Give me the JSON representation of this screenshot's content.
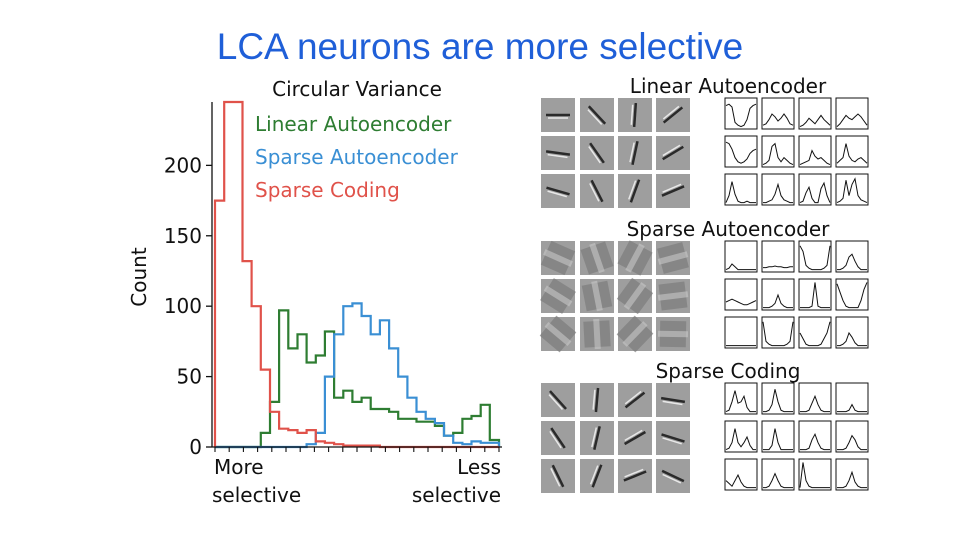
{
  "slide": {
    "title": "LCA neurons are more selective"
  },
  "chart_data": {
    "type": "histogram-step",
    "title": "Circular Variance",
    "ylabel": "Count",
    "xlabel_left": [
      "More",
      "selective"
    ],
    "xlabel_right": [
      "Less",
      "selective"
    ],
    "xlim": [
      0,
      1
    ],
    "ylim": [
      0,
      245
    ],
    "yticks": [
      0,
      50,
      100,
      150,
      200
    ],
    "legend_position": "top-right",
    "bins": 31,
    "series": [
      {
        "name": "Linear Autoencoder",
        "color": "#2e7d32",
        "values": [
          0,
          0,
          0,
          0,
          0,
          10,
          32,
          97,
          70,
          80,
          60,
          65,
          82,
          35,
          40,
          32,
          35,
          27,
          27,
          25,
          20,
          20,
          18,
          18,
          15,
          8,
          10,
          20,
          22,
          30,
          5
        ]
      },
      {
        "name": "Sparse Autoencoder",
        "color": "#3a8fd4",
        "values": [
          0,
          0,
          0,
          0,
          0,
          0,
          0,
          0,
          0,
          0,
          2,
          10,
          50,
          80,
          100,
          102,
          93,
          80,
          90,
          70,
          50,
          35,
          25,
          20,
          17,
          8,
          3,
          2,
          4,
          3,
          3
        ]
      },
      {
        "name": "Sparse Coding",
        "color": "#e0524a",
        "values": [
          175,
          245,
          245,
          132,
          100,
          55,
          25,
          13,
          12,
          10,
          12,
          4,
          3,
          2,
          1,
          1,
          1,
          1,
          0,
          0,
          0,
          0,
          0,
          0,
          0,
          0,
          0,
          0,
          0,
          0,
          0
        ]
      }
    ]
  },
  "panels": [
    {
      "title": "Linear Autoencoder",
      "curves": [
        [
          0.8,
          0.85,
          0.75,
          0.2,
          0.1,
          0.05,
          0.1,
          0.3,
          0.7,
          0.8,
          0.85
        ],
        [
          0.1,
          0.15,
          0.3,
          0.5,
          0.4,
          0.25,
          0.35,
          0.5,
          0.35,
          0.15,
          0.1
        ],
        [
          0.05,
          0.1,
          0.2,
          0.35,
          0.25,
          0.15,
          0.3,
          0.45,
          0.3,
          0.2,
          0.1
        ],
        [
          0.05,
          0.15,
          0.3,
          0.45,
          0.35,
          0.3,
          0.4,
          0.5,
          0.4,
          0.25,
          0.1
        ],
        [
          0.85,
          0.8,
          0.6,
          0.3,
          0.15,
          0.1,
          0.15,
          0.25,
          0.45,
          0.55,
          0.6
        ],
        [
          0.05,
          0.1,
          0.2,
          0.7,
          0.8,
          0.3,
          0.15,
          0.3,
          0.2,
          0.1,
          0.05
        ],
        [
          0.05,
          0.1,
          0.15,
          0.2,
          0.55,
          0.35,
          0.25,
          0.3,
          0.2,
          0.1,
          0.05
        ],
        [
          0.1,
          0.2,
          0.3,
          0.8,
          0.35,
          0.2,
          0.15,
          0.25,
          0.3,
          0.2,
          0.1
        ],
        [
          0.05,
          0.3,
          0.8,
          0.35,
          0.1,
          0.05,
          0.05,
          0.1,
          0.05,
          0.05,
          0.05
        ],
        [
          0.05,
          0.05,
          0.1,
          0.15,
          0.35,
          0.7,
          0.3,
          0.15,
          0.1,
          0.05,
          0.05
        ],
        [
          0.05,
          0.1,
          0.4,
          0.6,
          0.2,
          0.05,
          0.05,
          0.55,
          0.75,
          0.3,
          0.05
        ],
        [
          0.05,
          0.1,
          0.2,
          0.85,
          0.3,
          0.7,
          0.9,
          0.3,
          0.15,
          0.1,
          0.05
        ]
      ]
    },
    {
      "title": "Sparse Autoencoder",
      "curves": [
        [
          0.05,
          0.1,
          0.25,
          0.15,
          0.05,
          0.05,
          0.05,
          0.05,
          0.05,
          0.05,
          0.05
        ],
        [
          0.12,
          0.12,
          0.15,
          0.15,
          0.18,
          0.15,
          0.15,
          0.12,
          0.12,
          0.15,
          0.15
        ],
        [
          0.9,
          0.7,
          0.2,
          0.1,
          0.05,
          0.05,
          0.05,
          0.05,
          0.1,
          0.2,
          0.9
        ],
        [
          0.05,
          0.05,
          0.1,
          0.2,
          0.5,
          0.6,
          0.35,
          0.15,
          0.05,
          0.05,
          0.05
        ],
        [
          0.25,
          0.3,
          0.35,
          0.3,
          0.25,
          0.2,
          0.15,
          0.15,
          0.2,
          0.25,
          0.3
        ],
        [
          0.05,
          0.05,
          0.05,
          0.1,
          0.2,
          0.5,
          0.2,
          0.1,
          0.05,
          0.05,
          0.05
        ],
        [
          0.05,
          0.05,
          0.05,
          0.05,
          0.1,
          0.95,
          0.1,
          0.05,
          0.05,
          0.05,
          0.05
        ],
        [
          0.9,
          0.6,
          0.3,
          0.1,
          0.05,
          0.05,
          0.05,
          0.05,
          0.3,
          0.7,
          0.95
        ],
        [
          0.05,
          0.05,
          0.05,
          0.05,
          0.05,
          0.05,
          0.05,
          0.05,
          0.05,
          0.05,
          0.05
        ],
        [
          0.9,
          0.2,
          0.1,
          0.05,
          0.05,
          0.05,
          0.05,
          0.05,
          0.1,
          0.2,
          0.9
        ],
        [
          0.5,
          0.3,
          0.1,
          0.05,
          0.05,
          0.05,
          0.05,
          0.1,
          0.3,
          0.5,
          0.9
        ],
        [
          0.05,
          0.05,
          0.1,
          0.2,
          0.5,
          0.35,
          0.15,
          0.05,
          0.05,
          0.05,
          0.05
        ]
      ]
    },
    {
      "title": "Sparse Coding",
      "curves": [
        [
          0.05,
          0.1,
          0.4,
          0.8,
          0.35,
          0.4,
          0.6,
          0.2,
          0.05,
          0.05,
          0.05
        ],
        [
          0.05,
          0.05,
          0.1,
          0.3,
          0.85,
          0.4,
          0.1,
          0.05,
          0.05,
          0.05,
          0.05
        ],
        [
          0.05,
          0.05,
          0.05,
          0.1,
          0.35,
          0.6,
          0.3,
          0.1,
          0.05,
          0.05,
          0.05
        ],
        [
          0.05,
          0.05,
          0.05,
          0.05,
          0.1,
          0.3,
          0.1,
          0.05,
          0.05,
          0.05,
          0.05
        ],
        [
          0.05,
          0.1,
          0.3,
          0.8,
          0.3,
          0.15,
          0.3,
          0.5,
          0.2,
          0.05,
          0.05
        ],
        [
          0.05,
          0.05,
          0.05,
          0.2,
          0.8,
          0.3,
          0.05,
          0.05,
          0.05,
          0.05,
          0.05
        ],
        [
          0.05,
          0.05,
          0.05,
          0.1,
          0.4,
          0.6,
          0.3,
          0.1,
          0.05,
          0.05,
          0.05
        ],
        [
          0.05,
          0.05,
          0.05,
          0.1,
          0.3,
          0.55,
          0.4,
          0.15,
          0.05,
          0.05,
          0.05
        ],
        [
          0.3,
          0.2,
          0.1,
          0.3,
          0.5,
          0.25,
          0.1,
          0.05,
          0.05,
          0.05,
          0.05
        ],
        [
          0.05,
          0.05,
          0.1,
          0.3,
          0.55,
          0.3,
          0.1,
          0.05,
          0.05,
          0.05,
          0.05
        ],
        [
          0.05,
          0.95,
          0.3,
          0.1,
          0.05,
          0.05,
          0.05,
          0.05,
          0.05,
          0.05,
          0.05
        ],
        [
          0.05,
          0.05,
          0.05,
          0.1,
          0.3,
          0.6,
          0.25,
          0.1,
          0.05,
          0.05,
          0.05
        ]
      ]
    }
  ]
}
